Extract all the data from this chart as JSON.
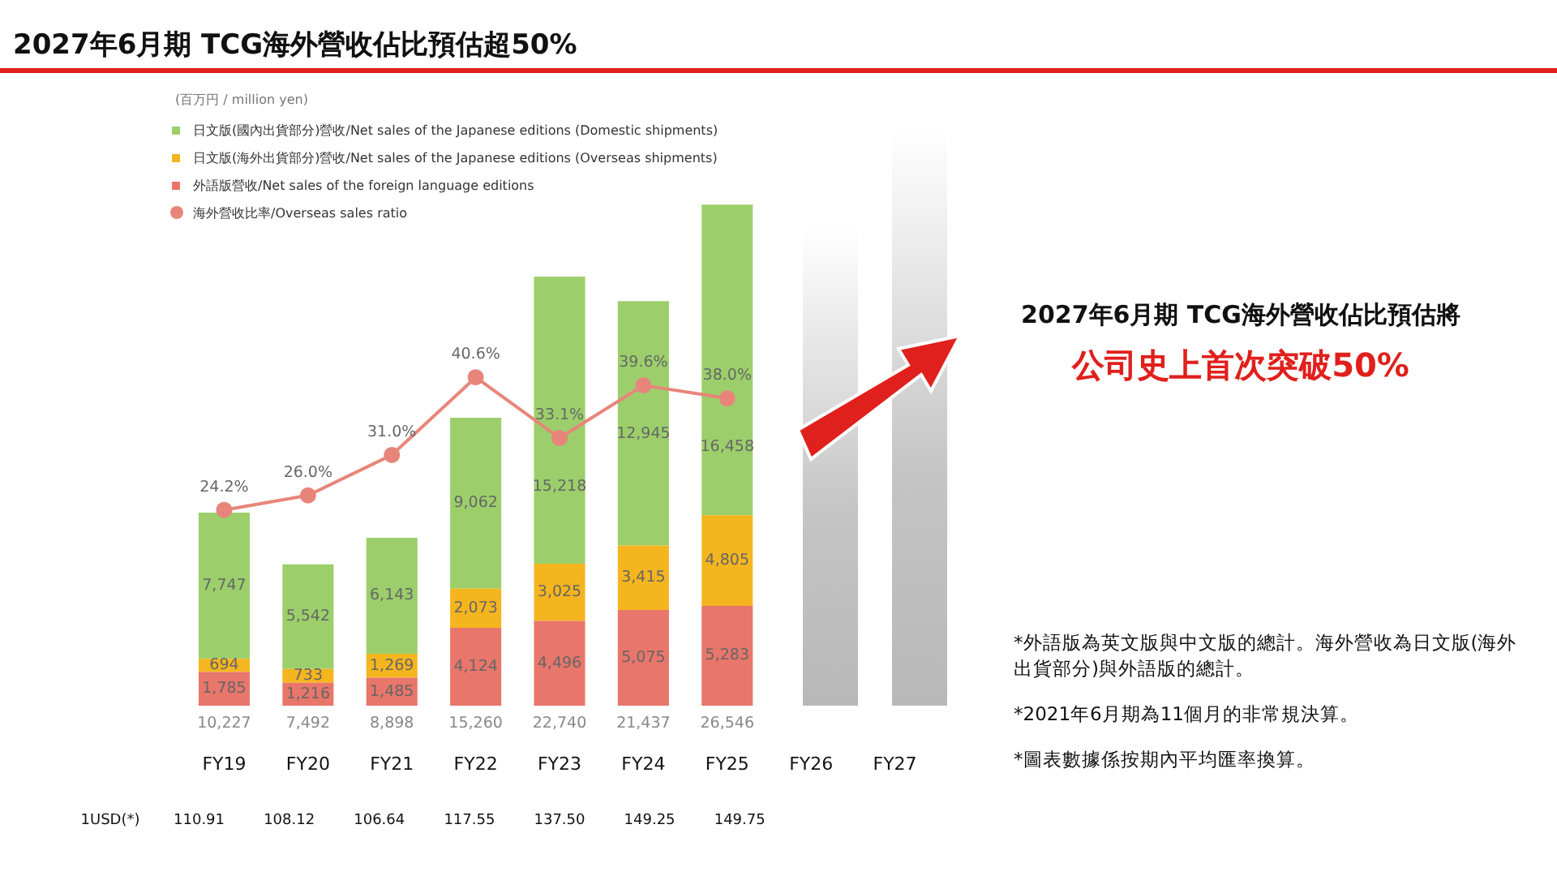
{
  "chart_data": {
    "type": "bar",
    "title": "2027年6月期 TCG海外營收佔比預估超50%",
    "categories": [
      "FY19",
      "FY20",
      "FY21",
      "FY22",
      "FY23",
      "FY24",
      "FY25",
      "FY26",
      "FY27"
    ],
    "stacked": true,
    "legend": "top left",
    "grid": false,
    "tick_labels": "x",
    "marker": "circle",
    "series": [
      {
        "name": "外語版營收/Net sales of the foreign language editions",
        "color": "#e8766a",
        "values": [
          1785,
          1216,
          1485,
          4124,
          4496,
          5075,
          5283,
          null,
          null
        ],
        "value_labels": [
          "1,785",
          "1,216",
          "1,485",
          "4,124",
          "4,496",
          "5,075",
          "5,283",
          null,
          null
        ]
      },
      {
        "name": "日文版(海外出貨部分)營收/Net sales of the Japanese editions (Overseas shipments)",
        "color": "#f5b51e",
        "values": [
          694,
          733,
          1269,
          2073,
          3025,
          3415,
          4805,
          null,
          null
        ],
        "value_labels": [
          "694",
          "733",
          "1,269",
          "2,073",
          "3,025",
          "3,415",
          "4,805",
          null,
          null
        ]
      },
      {
        "name": "日文版(國內出貨部分)營收/Net sales of the Japanese editions (Domestic shipments)",
        "color": "#9ccf6b",
        "values": [
          7747,
          5542,
          6143,
          9062,
          15218,
          12945,
          16458,
          null,
          null
        ],
        "value_labels": [
          "7,747",
          "5,542",
          "6,143",
          "9,062",
          "15,218",
          "12,945",
          "16,458",
          null,
          null
        ]
      },
      {
        "name": "海外營收比率/Overseas sales ratio",
        "type": "line",
        "axis": "y2",
        "color": "#e8857a",
        "values": [
          24.2,
          26.0,
          31.0,
          40.6,
          33.1,
          39.6,
          38.0,
          null,
          null
        ],
        "value_labels": [
          "24.2%",
          "26.0%",
          "31.0%",
          "40.6%",
          "33.1%",
          "39.6%",
          "38.0%",
          null,
          null
        ]
      }
    ],
    "totals": [
      "10,227",
      "7,492",
      "8,898",
      "15,260",
      "22,740",
      "21,437",
      "26,546",
      null,
      null
    ],
    "annotations": [
      "2027年6月期 TCG海外營收佔比預估將",
      "公司史上首次突破50%",
      "(百万円 / million yen)",
      "*外語版為英文版與中文版的總計。海外營收為日文版(海外出貨部分)與外語版的總計。",
      "*2021年6月期為11個月的非常規決算。",
      "*圖表數據係按期內平均匯率換算。",
      "1USD(*)",
      "110.91",
      "108.12",
      "106.64",
      "117.55",
      "137.50",
      "149.25",
      "149.75"
    ]
  }
}
